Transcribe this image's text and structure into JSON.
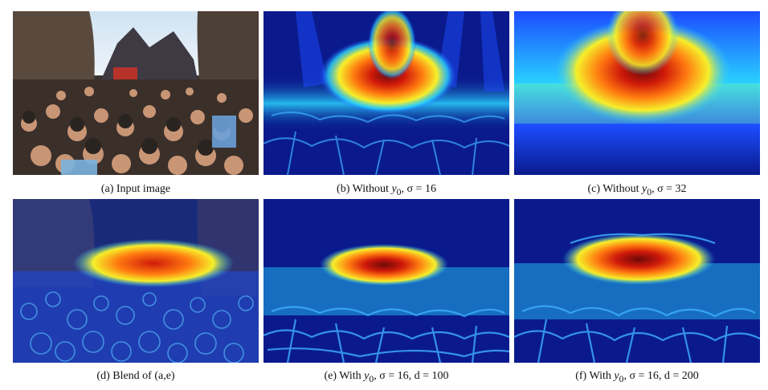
{
  "figure": {
    "captions": {
      "a": "(a) Input image",
      "b_prefix": "(b) Without ",
      "b_var": "y",
      "b_sub": "0",
      "b_suffix": ", σ = 16",
      "c_prefix": "(c) Without ",
      "c_var": "y",
      "c_sub": "0",
      "c_suffix": ", σ = 32",
      "d": "(d) Blend of (a,e)",
      "e_prefix": "(e) With ",
      "e_var": "y",
      "e_sub": "0",
      "e_suffix": ", σ = 16, d = 100",
      "f_prefix": "(f) With ",
      "f_var": "y",
      "f_sub": "0",
      "f_suffix": ", σ = 16, d = 200"
    },
    "colors": {
      "deep_blue": "#0a1a8c",
      "mid_blue": "#1c4cff",
      "cyan": "#29d4ff",
      "yellow": "#f6ef2a",
      "orange": "#ff7a10",
      "red": "#d01a0a",
      "dark_red": "#6e0808"
    }
  }
}
